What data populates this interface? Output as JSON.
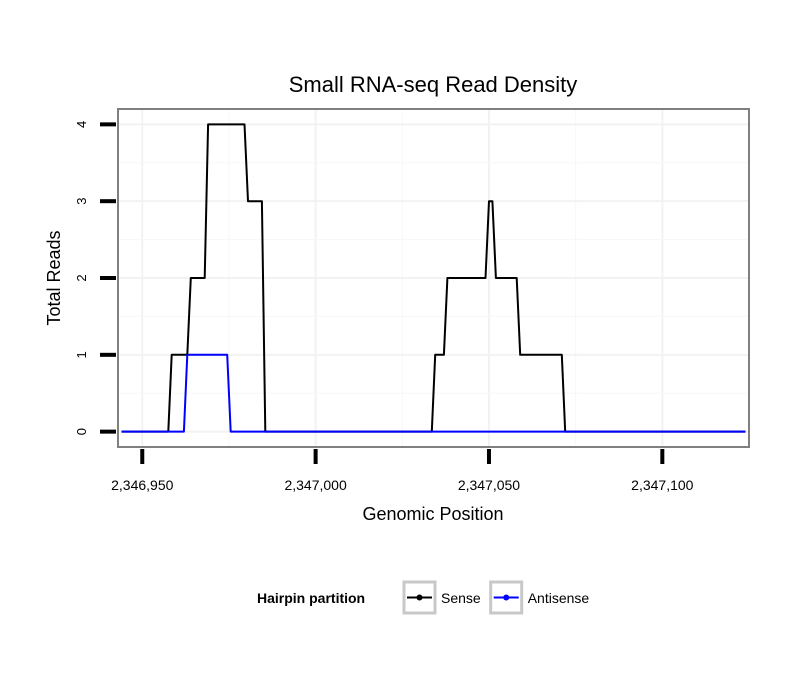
{
  "chart_data": {
    "type": "line",
    "title": "Small RNA-seq Read Density",
    "xlabel": "Genomic Position",
    "ylabel": "Total Reads",
    "xlim": [
      2346943,
      2347125
    ],
    "ylim": [
      -0.2,
      4.2
    ],
    "x_ticks": [
      2346950,
      2347000,
      2347050,
      2347100
    ],
    "x_tick_labels": [
      "2,346,950",
      "2,347,000",
      "2,347,050",
      "2,347,100"
    ],
    "y_ticks": [
      0,
      1,
      2,
      3,
      4
    ],
    "y_tick_labels": [
      "0",
      "1",
      "2",
      "3",
      "4"
    ],
    "grid": true,
    "legend": {
      "title": "Hairpin partition",
      "position": "bottom"
    },
    "series": [
      {
        "name": "Sense",
        "color": "#000000",
        "x": [
          2346944,
          2346957.5,
          2346958.5,
          2346963,
          2346964,
          2346968,
          2346969,
          2346979.5,
          2346980.5,
          2346984.5,
          2346985.5,
          2346990.5,
          2346991.5,
          2347033.5,
          2347034.5,
          2347037,
          2347038,
          2347049,
          2347050,
          2347051,
          2347052,
          2347058,
          2347059,
          2347071,
          2347072,
          2347124
        ],
        "y": [
          0,
          0,
          1,
          1,
          2,
          2,
          4,
          4,
          3,
          3,
          0,
          0,
          0,
          0,
          1,
          1,
          2,
          2,
          3,
          3,
          2,
          2,
          1,
          1,
          0,
          0
        ]
      },
      {
        "name": "Antisense",
        "color": "#0000ff",
        "x": [
          2346944,
          2346962,
          2346963,
          2346974.5,
          2346975.5,
          2347124
        ],
        "y": [
          0,
          0,
          1,
          1,
          0,
          0
        ]
      }
    ]
  }
}
